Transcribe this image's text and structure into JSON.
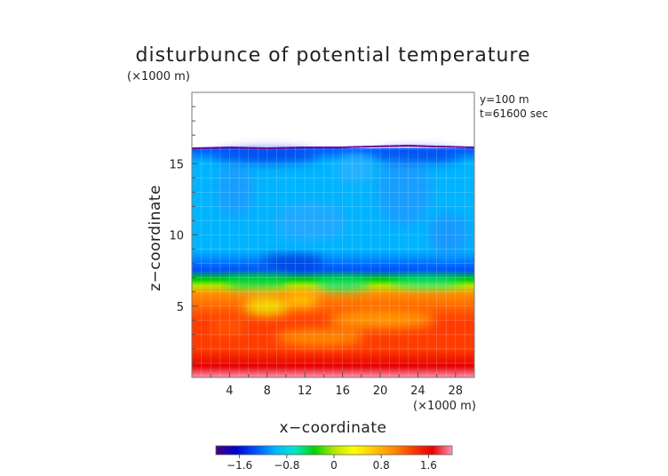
{
  "chart_data": {
    "type": "heatmap",
    "title": "disturbunce of potential temperature",
    "xlabel": "x−coordinate",
    "ylabel": "z−coordinate",
    "x_unit": "(×1000 m)",
    "y_unit": "(×1000 m)",
    "xlim": [
      0,
      30
    ],
    "ylim": [
      0,
      20
    ],
    "x_ticks": [
      4,
      8,
      12,
      16,
      20,
      24,
      28
    ],
    "y_ticks": [
      5,
      10,
      15
    ],
    "annotations": [
      "y=100 m",
      "t=61600 sec"
    ],
    "colorbar": {
      "range": [
        -2.0,
        2.0
      ],
      "tick_values": [
        -1.6,
        -0.8,
        0,
        0.8,
        1.6
      ],
      "tick_labels": [
        "−1.6",
        "−0.8",
        "0",
        "0.8",
        "1.6"
      ],
      "colors": [
        "#4a0080",
        "#0000c8",
        "#0050ff",
        "#00b4ff",
        "#00e6c8",
        "#00d200",
        "#b4e600",
        "#ffff00",
        "#ffc800",
        "#ff8c00",
        "#ff3c00",
        "#e60000",
        "#ff96b4"
      ]
    },
    "field": {
      "domain_top_km": 16.2,
      "upper_layer_value": -1.1,
      "transition_height_km": 6.5,
      "surface_value": 1.9
    }
  }
}
